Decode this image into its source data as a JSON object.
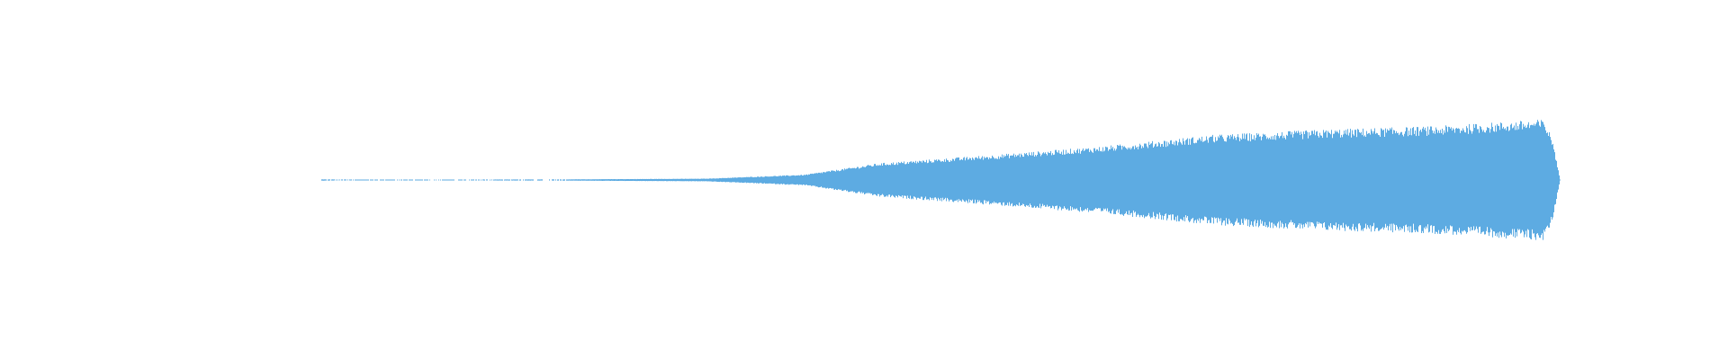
{
  "chart_data": {
    "type": "area",
    "subtype": "audio-waveform",
    "title": "",
    "xlabel": "",
    "ylabel": "",
    "axes_visible": false,
    "grid": false,
    "legend": "none",
    "color": "#5DABE2",
    "background": "#FFFFFF",
    "symmetric": true,
    "envelope": {
      "t": [
        0,
        0.05,
        0.2,
        0.31,
        0.39,
        0.45,
        0.54,
        0.63,
        0.72,
        0.81,
        0.9,
        0.987,
        0.994,
        1.0
      ],
      "amplitude": [
        0.01,
        0.005,
        0.01,
        0.02,
        0.08,
        0.25,
        0.37,
        0.5,
        0.67,
        0.75,
        0.8,
        0.9,
        0.6,
        0.0
      ]
    }
  }
}
